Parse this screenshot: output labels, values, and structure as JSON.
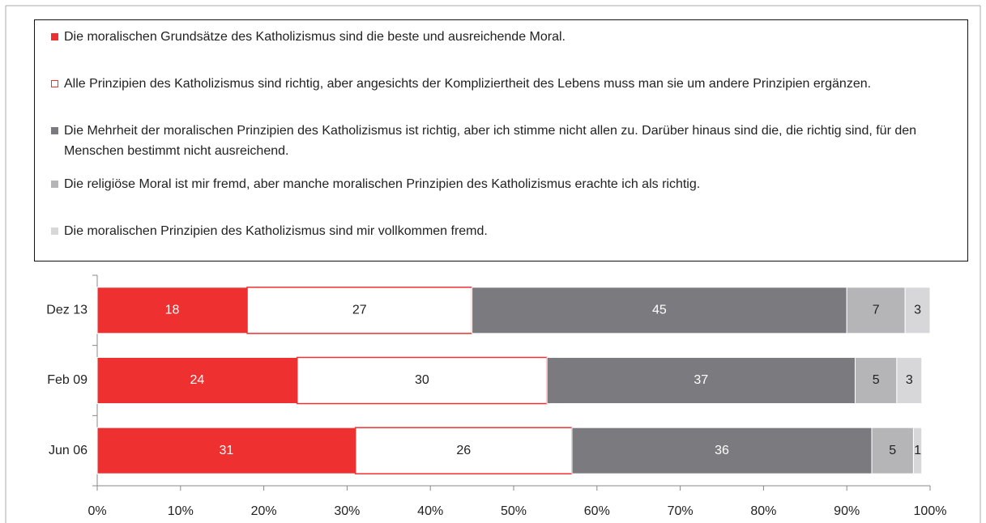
{
  "chart_data": {
    "type": "stacked-barh",
    "categories": [
      "Dez 13",
      "Feb 09",
      "Jun 06"
    ],
    "series": [
      {
        "name": "Die moralischen Grundsätze des Katholizismus sind die beste und ausreichende Moral.",
        "color": "#ee3030",
        "values": [
          18,
          24,
          31
        ]
      },
      {
        "name": "Alle Prinzipien des Katholizismus sind richtig, aber angesichts der Kompliziertheit des Lebens muss man sie um andere Prinzipien ergänzen.",
        "color": "#ffffff",
        "edgecolor": "#ee3030",
        "values": [
          27,
          30,
          26
        ]
      },
      {
        "name": "Die Mehrheit der moralischen Prinzipien des Katholizismus ist richtig, aber ich stimme nicht allen zu. Darüber hinaus sind die, die richtig sind, für den Menschen bestimmt nicht ausreichend.",
        "color": "#7b7b7f",
        "values": [
          45,
          37,
          36
        ]
      },
      {
        "name": "Die religiöse Moral ist mir fremd, aber manche moralischen Prinzipien des Katholizismus erachte ich als richtig.",
        "color": "#b5b5b8",
        "values": [
          7,
          5,
          5
        ]
      },
      {
        "name": "Die moralischen Prinzipien des Katholizismus sind mir vollkommen fremd.",
        "color": "#d7d7d9",
        "values": [
          3,
          3,
          1
        ]
      }
    ],
    "xlim": [
      0,
      100
    ],
    "xticks": [
      {
        "value": 0,
        "label": "0%"
      },
      {
        "value": 10,
        "label": "10%"
      },
      {
        "value": 20,
        "label": "20%"
      },
      {
        "value": 30,
        "label": "30%"
      },
      {
        "value": 40,
        "label": "40%"
      },
      {
        "value": 50,
        "label": "50%"
      },
      {
        "value": 60,
        "label": "60%"
      },
      {
        "value": 70,
        "label": "70%"
      },
      {
        "value": 80,
        "label": "80%"
      },
      {
        "value": 90,
        "label": "90%"
      },
      {
        "value": 100,
        "label": "100%"
      }
    ]
  }
}
